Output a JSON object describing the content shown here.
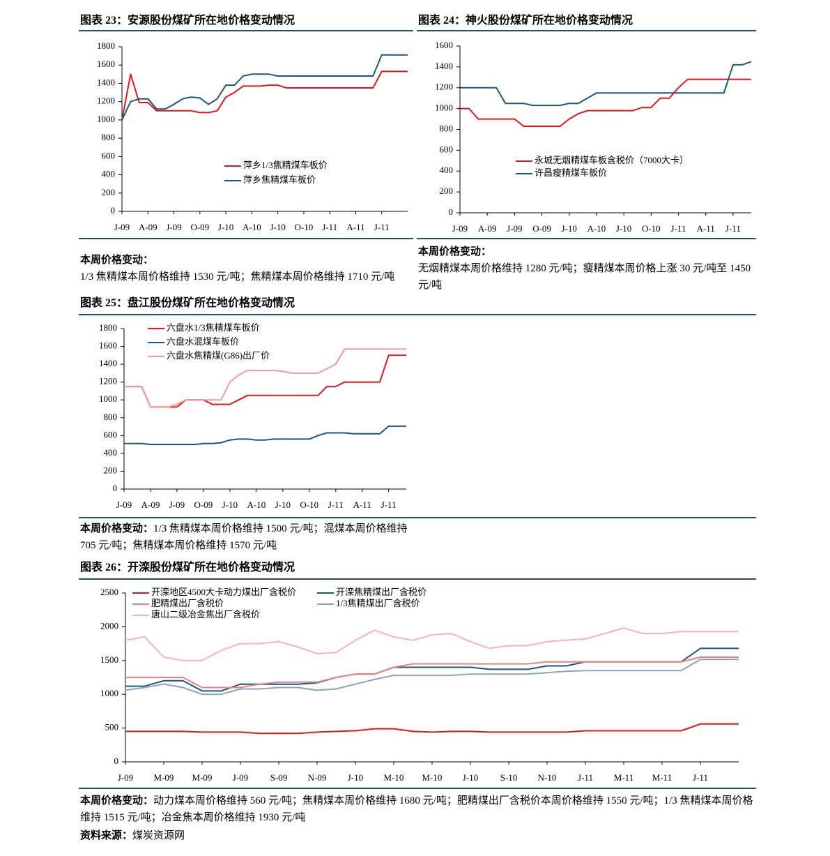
{
  "chart_data": [
    {
      "type": "line",
      "title": "图表 23：安源股份煤矿所在地价格变动情况",
      "categories": [
        "J-09",
        null,
        null,
        "A-09",
        null,
        null,
        "J-09",
        null,
        null,
        "O-09",
        null,
        null,
        "J-10",
        null,
        null,
        "A-10",
        null,
        null,
        "J-10",
        null,
        null,
        "O-10",
        null,
        null,
        "J-11",
        null,
        null,
        "A-11",
        null,
        null,
        "J-11",
        null,
        null,
        null
      ],
      "series": [
        {
          "name": "萍乡1/3焦精煤车板价",
          "color": "#e8141c",
          "values": [
            1000,
            1500,
            1190,
            1190,
            1100,
            1100,
            1100,
            1100,
            1100,
            1080,
            1080,
            1100,
            1250,
            1300,
            1370,
            1370,
            1370,
            1380,
            1380,
            1350,
            1350,
            1350,
            1350,
            1350,
            1350,
            1350,
            1350,
            1350,
            1350,
            1350,
            1530,
            1530,
            1530,
            1530
          ]
        },
        {
          "name": "萍乡焦精煤车板价",
          "color": "#1c5584",
          "values": [
            1000,
            1200,
            1230,
            1230,
            1120,
            1120,
            1170,
            1230,
            1250,
            1240,
            1170,
            1230,
            1380,
            1380,
            1480,
            1500,
            1500,
            1500,
            1480,
            1480,
            1480,
            1480,
            1480,
            1480,
            1480,
            1480,
            1480,
            1480,
            1480,
            1480,
            1710,
            1710,
            1710,
            1710
          ]
        }
      ],
      "ylim": [
        0,
        1800
      ],
      "yticks": [
        0,
        200,
        400,
        600,
        800,
        1000,
        1200,
        1400,
        1600,
        1800
      ],
      "note_heading": "本周价格变动：",
      "note": "1/3 焦精煤本周价格维持 1530 元/吨；焦精煤本周价格维持 1710 元/吨"
    },
    {
      "type": "line",
      "title": "图表 24：神火股份煤矿所在地价格变动情况",
      "categories": [
        "J-09",
        null,
        null,
        "A-09",
        null,
        null,
        "J-09",
        null,
        null,
        "O-09",
        null,
        null,
        "J-10",
        null,
        null,
        "A-10",
        null,
        null,
        "J-10",
        null,
        null,
        "O-10",
        null,
        null,
        "J-11",
        null,
        null,
        "A-11",
        null,
        null,
        "J-11",
        null,
        null
      ],
      "series": [
        {
          "name": "永城无烟精煤车板含税价（7000大卡）",
          "color": "#e8141c",
          "values": [
            1000,
            1000,
            900,
            900,
            900,
            900,
            900,
            830,
            830,
            830,
            830,
            830,
            900,
            950,
            980,
            980,
            980,
            980,
            980,
            980,
            1010,
            1010,
            1100,
            1100,
            1200,
            1280,
            1280,
            1280,
            1280,
            1280,
            1280,
            1280,
            1280
          ]
        },
        {
          "name": "许昌瘦精煤车板价",
          "color": "#1c5584",
          "values": [
            1200,
            1200,
            1200,
            1200,
            1200,
            1050,
            1050,
            1050,
            1030,
            1030,
            1030,
            1030,
            1050,
            1050,
            1100,
            1150,
            1150,
            1150,
            1150,
            1150,
            1150,
            1150,
            1150,
            1150,
            1150,
            1150,
            1150,
            1150,
            1150,
            1150,
            1420,
            1420,
            1450
          ]
        }
      ],
      "ylim": [
        0,
        1600
      ],
      "yticks": [
        0,
        200,
        400,
        600,
        800,
        1000,
        1200,
        1400,
        1600
      ],
      "note_heading": "本周价格变动：",
      "note": "无烟精煤本周价格维持 1280 元/吨；瘦精煤本周价格上涨 30 元/吨至 1450 元/吨"
    },
    {
      "type": "line",
      "title": "图表 25：盘江股份煤矿所在地价格变动情况",
      "categories": [
        "J-09",
        null,
        null,
        "A-09",
        null,
        null,
        "J-09",
        null,
        null,
        "O-09",
        null,
        null,
        "J-10",
        null,
        null,
        "A-10",
        null,
        null,
        "J-10",
        null,
        null,
        "O-10",
        null,
        null,
        "J-11",
        null,
        null,
        "A-11",
        null,
        null,
        "J-11",
        null,
        null
      ],
      "series": [
        {
          "name": "六盘水1/3焦精煤车板价",
          "color": "#e8141c",
          "values": [
            1150,
            1150,
            1150,
            920,
            920,
            920,
            920,
            1000,
            1000,
            1000,
            950,
            950,
            950,
            1000,
            1050,
            1050,
            1050,
            1050,
            1050,
            1050,
            1050,
            1050,
            1050,
            1150,
            1150,
            1200,
            1200,
            1200,
            1200,
            1200,
            1500,
            1500,
            1500
          ]
        },
        {
          "name": "六盘水混煤车板价",
          "color": "#1c5584",
          "values": [
            510,
            510,
            510,
            500,
            500,
            500,
            500,
            500,
            500,
            510,
            510,
            520,
            550,
            560,
            560,
            550,
            550,
            560,
            560,
            560,
            560,
            560,
            600,
            630,
            630,
            630,
            620,
            620,
            620,
            620,
            705,
            705,
            705
          ]
        },
        {
          "name": "六盘水焦精煤(G86)出厂价",
          "color": "#f49a9a",
          "values": [
            1150,
            1150,
            1150,
            920,
            920,
            920,
            950,
            1000,
            1000,
            1000,
            1000,
            1000,
            1200,
            1280,
            1330,
            1330,
            1330,
            1330,
            1320,
            1300,
            1300,
            1300,
            1300,
            1350,
            1400,
            1570,
            1570,
            1570,
            1570,
            1570,
            1570,
            1570,
            1570
          ]
        }
      ],
      "ylim": [
        0,
        1800
      ],
      "yticks": [
        0,
        200,
        400,
        600,
        800,
        1000,
        1200,
        1400,
        1600,
        1800
      ],
      "note_heading": "本周价格变动：",
      "note": "1/3 焦精煤本周价格维持 1500 元/吨；混煤本周价格维持 705 元/吨；焦精煤本周价格维持 1570 元/吨"
    },
    {
      "type": "line",
      "title": "图表 26：开滦股份煤矿所在地价格变动情况",
      "categories": [
        "J-09",
        null,
        "M-09",
        null,
        "M-09",
        null,
        "J-09",
        null,
        "S-09",
        null,
        "N-09",
        null,
        "J-10",
        null,
        "M-10",
        null,
        "M-10",
        null,
        "J-10",
        null,
        "S-10",
        null,
        "N-10",
        null,
        "J-11",
        null,
        "M-11",
        null,
        "M-11",
        null,
        "J-11",
        null,
        null
      ],
      "series": [
        {
          "name": "开滦地区4500大卡动力煤出厂含税价",
          "color": "#e8141c",
          "values": [
            450,
            450,
            450,
            450,
            440,
            440,
            440,
            420,
            420,
            420,
            440,
            450,
            460,
            490,
            490,
            450,
            440,
            450,
            450,
            440,
            440,
            440,
            440,
            440,
            460,
            460,
            460,
            460,
            460,
            460,
            560,
            560,
            560
          ]
        },
        {
          "name": "开滦焦精煤出厂含税价",
          "color": "#1c5584",
          "values": [
            1120,
            1120,
            1200,
            1200,
            1050,
            1050,
            1150,
            1150,
            1150,
            1150,
            1170,
            1250,
            1300,
            1300,
            1400,
            1400,
            1400,
            1400,
            1400,
            1370,
            1370,
            1370,
            1420,
            1420,
            1480,
            1480,
            1480,
            1480,
            1480,
            1480,
            1680,
            1680,
            1680
          ]
        },
        {
          "name": "肥精煤出厂含税价",
          "color": "#f08080",
          "values": [
            1250,
            1250,
            1250,
            1250,
            1100,
            1100,
            1100,
            1150,
            1180,
            1180,
            1180,
            1250,
            1300,
            1300,
            1400,
            1450,
            1450,
            1450,
            1450,
            1450,
            1450,
            1450,
            1480,
            1480,
            1480,
            1480,
            1480,
            1480,
            1480,
            1480,
            1550,
            1550,
            1550
          ]
        },
        {
          "name": "1/3焦精煤出厂含税价",
          "color": "#8aa4c0",
          "values": [
            1060,
            1100,
            1150,
            1100,
            1000,
            1000,
            1080,
            1080,
            1100,
            1100,
            1060,
            1080,
            1150,
            1220,
            1280,
            1280,
            1280,
            1280,
            1300,
            1300,
            1300,
            1300,
            1320,
            1340,
            1350,
            1350,
            1350,
            1350,
            1350,
            1350,
            1515,
            1515,
            1515
          ]
        },
        {
          "name": "唐山二级冶金焦出厂含税价",
          "color": "#f6b3b8",
          "values": [
            1800,
            1850,
            1550,
            1500,
            1500,
            1650,
            1750,
            1750,
            1780,
            1700,
            1600,
            1620,
            1800,
            1950,
            1850,
            1800,
            1880,
            1900,
            1780,
            1680,
            1720,
            1720,
            1780,
            1800,
            1820,
            1900,
            1980,
            1900,
            1900,
            1930,
            1930,
            1930,
            1930
          ]
        }
      ],
      "ylim": [
        0,
        2500
      ],
      "yticks": [
        0,
        500,
        1000,
        1500,
        2000,
        2500
      ],
      "note_heading": "本周价格变动：",
      "note": "动力煤本周价格维持 560 元/吨；焦精煤本周价格维持 1680 元/吨；肥精煤出厂含税价本周价格维持 1550 元/吨；1/3 焦精煤本周价格维持 1515 元/吨；冶金焦本周价格维持 1930 元/吨"
    }
  ],
  "source": {
    "label": "资料来源：",
    "text": "煤炭资源网"
  }
}
